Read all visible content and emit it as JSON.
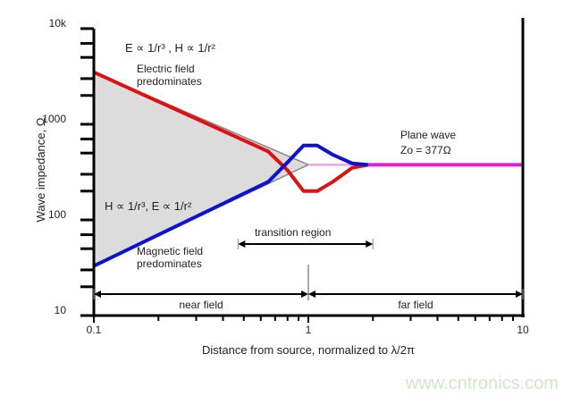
{
  "chart_data": {
    "type": "line",
    "xlabel": "Distance from source, normalized to λ/2π",
    "ylabel": "Wave impedance, Ω",
    "xscale": "log",
    "yscale": "log",
    "xlim": [
      0.1,
      10
    ],
    "ylim": [
      10,
      10000
    ],
    "x_tick_labels": [
      "0.1",
      "1",
      "10"
    ],
    "x_ticks": [
      0.1,
      1,
      10
    ],
    "y_tick_labels": [
      "10",
      "100",
      "1000",
      "10k"
    ],
    "y_ticks": [
      10,
      100,
      1000,
      10000
    ],
    "grid": false,
    "series": [
      {
        "key": "electric",
        "color": "#e01010",
        "x": [
          0.1,
          0.65,
          0.8,
          0.95,
          1.1,
          1.3,
          1.6,
          1.9
        ],
        "y": [
          3500,
          520,
          330,
          200,
          200,
          250,
          350,
          377
        ]
      },
      {
        "key": "magnetic",
        "color": "#1010d0",
        "x": [
          0.1,
          0.65,
          0.8,
          0.95,
          1.1,
          1.3,
          1.6,
          1.9
        ],
        "y": [
          33,
          250,
          400,
          600,
          600,
          480,
          390,
          377
        ]
      },
      {
        "key": "plane-wave",
        "color": "#e020d0",
        "x": [
          1.9,
          10
        ],
        "y": [
          377,
          377
        ]
      }
    ],
    "annotations": {
      "electric_law": "E ∝ 1/r³ , H ∝ 1/r²",
      "electric_label_1": "Electric field",
      "electric_label_2": "predominates",
      "magnetic_law": "H ∝ 1/r³, E ∝ 1/r²",
      "magnetic_label_1": "Magnetic field",
      "magnetic_label_2": "predominates",
      "plane_wave_1": "Plane wave",
      "plane_wave_2": "Zo = 377Ω",
      "transition": "transition region",
      "near_field": "near field",
      "far_field": "far field"
    },
    "regions": {
      "near_field": [
        0.1,
        1
      ],
      "far_field": [
        1,
        10
      ],
      "transition": [
        0.47,
        2
      ]
    }
  },
  "watermark": "www.cntronics.com"
}
